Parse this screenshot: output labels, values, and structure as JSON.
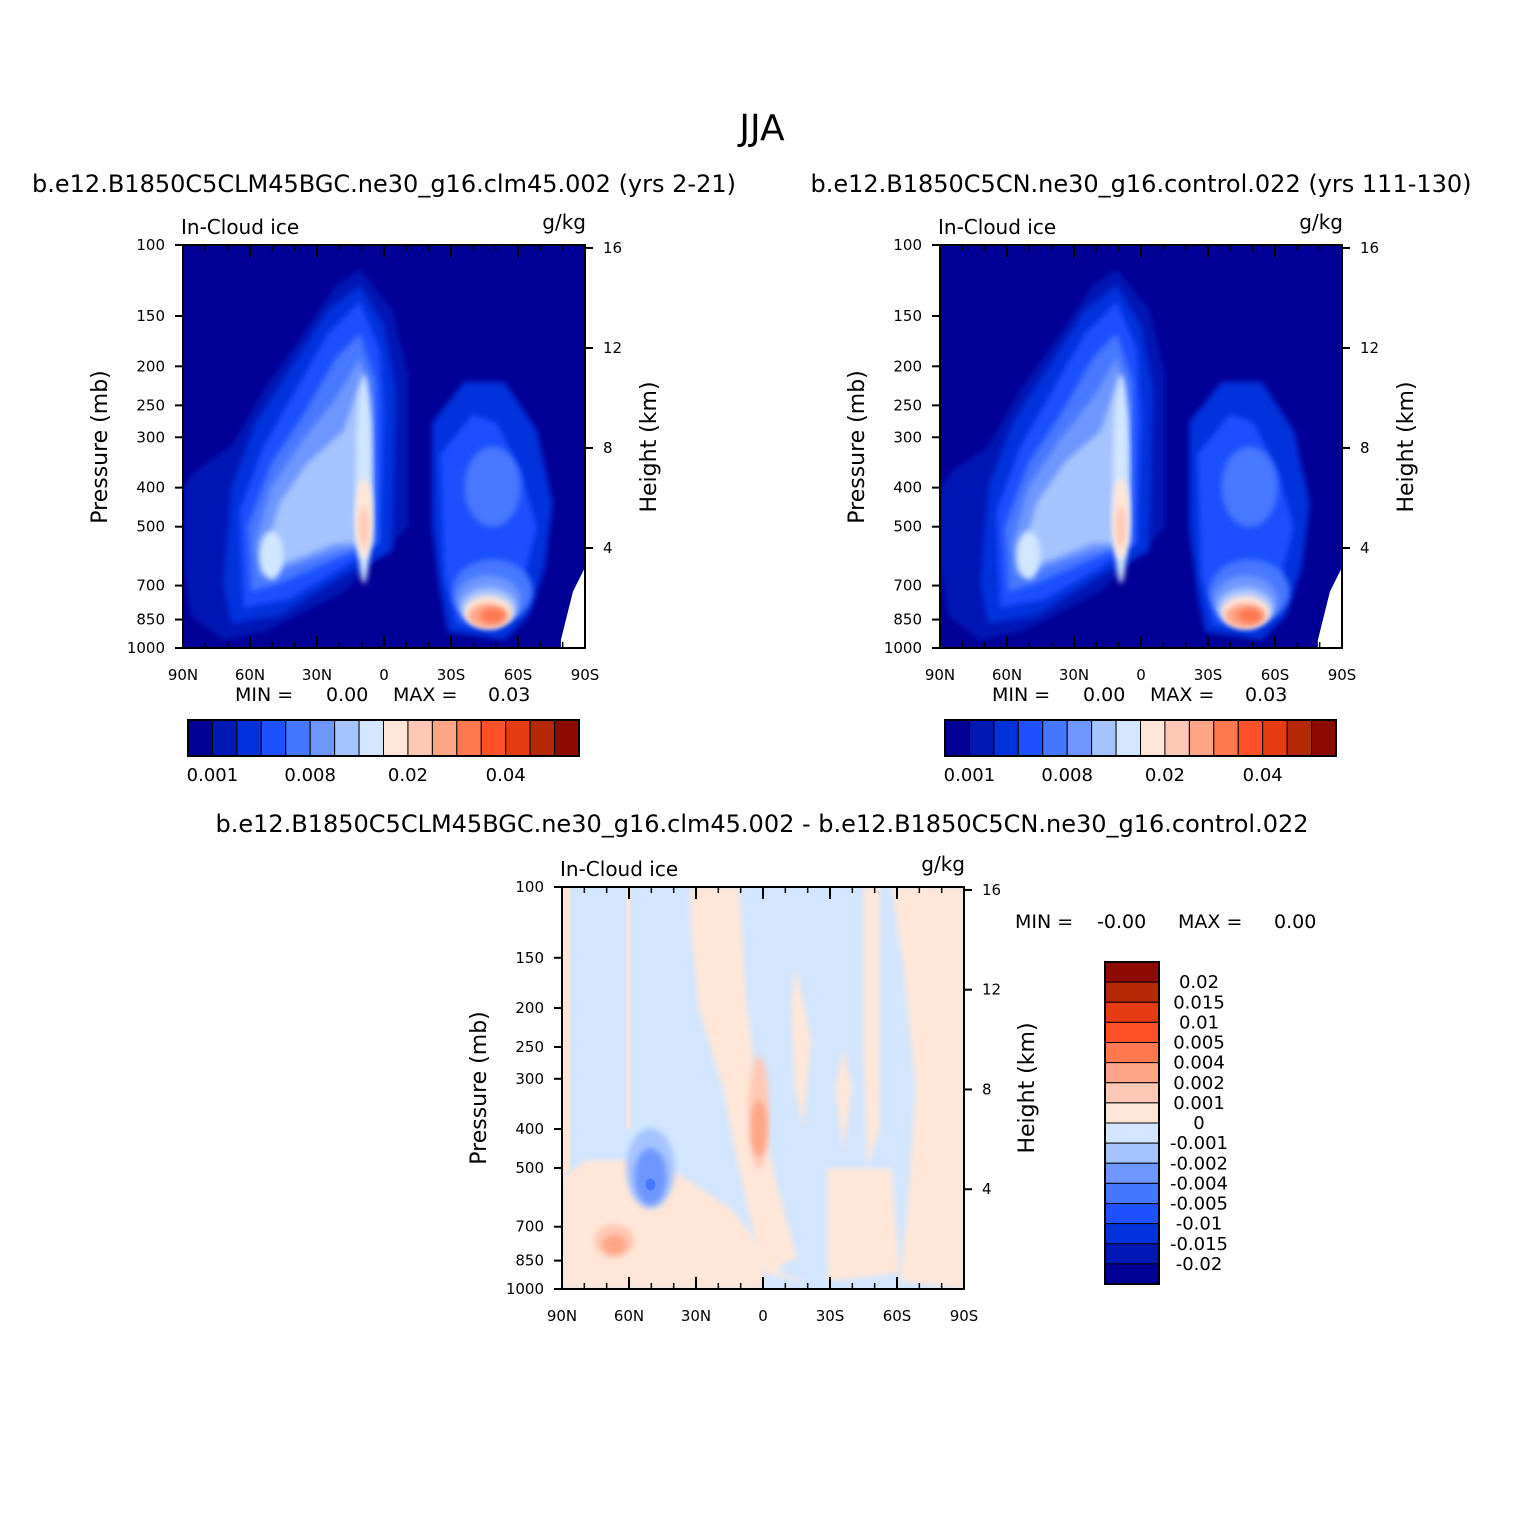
{
  "title": "JJA",
  "colors": {
    "seq": [
      "#000096",
      "#0019b4",
      "#0032dc",
      "#1e50ff",
      "#4678ff",
      "#6e96ff",
      "#a5c3ff",
      "#d2e6ff",
      "#ffe6d7",
      "#ffc8b4",
      "#ffa587",
      "#ff7850",
      "#ff5028",
      "#e63c14",
      "#b42805",
      "#8c0a00"
    ],
    "div": [
      "#000096",
      "#0019b4",
      "#0032dc",
      "#1e50ff",
      "#4678ff",
      "#6e96ff",
      "#a5c3ff",
      "#d2e6ff",
      "#ffe6d7",
      "#ffc8b4",
      "#ffa587",
      "#ff7850",
      "#ff5028",
      "#e63c14",
      "#b42805",
      "#8c0a00"
    ]
  },
  "chart_data": [
    {
      "type": "contour",
      "subtitle": "b.e12.B1850C5CLM45BGC.ne30_g16.clm45.002 (yrs 2-21)",
      "variable_label": "In-Cloud ice",
      "units_label": "g/kg",
      "ylabel": "Pressure (mb)",
      "ylabel_right": "Height (km)",
      "x_ticks": [
        "90N",
        "60N",
        "30N",
        "0",
        "30S",
        "60S",
        "90S"
      ],
      "y_ticks": [
        "100",
        "150",
        "200",
        "250",
        "300",
        "400",
        "500",
        "700",
        "850",
        "1000"
      ],
      "y_ticks_right": [
        "16",
        "12",
        "8",
        "4"
      ],
      "min_label": "MIN =",
      "min_value": "0.00",
      "max_label": "MAX =",
      "max_value": "0.03",
      "colorbar_labels": [
        "0.001",
        "0.008",
        "0.02",
        "0.04"
      ]
    },
    {
      "type": "contour",
      "subtitle": "b.e12.B1850C5CN.ne30_g16.control.022 (yrs 111-130)",
      "variable_label": "In-Cloud ice",
      "units_label": "g/kg",
      "ylabel": "Pressure (mb)",
      "ylabel_right": "Height (km)",
      "x_ticks": [
        "90N",
        "60N",
        "30N",
        "0",
        "30S",
        "60S",
        "90S"
      ],
      "y_ticks": [
        "100",
        "150",
        "200",
        "250",
        "300",
        "400",
        "500",
        "700",
        "850",
        "1000"
      ],
      "y_ticks_right": [
        "16",
        "12",
        "8",
        "4"
      ],
      "min_label": "MIN =",
      "min_value": "0.00",
      "max_label": "MAX =",
      "max_value": "0.03",
      "colorbar_labels": [
        "0.001",
        "0.008",
        "0.02",
        "0.04"
      ]
    },
    {
      "type": "contour",
      "subtitle": "b.e12.B1850C5CLM45BGC.ne30_g16.clm45.002 - b.e12.B1850C5CN.ne30_g16.control.022",
      "variable_label": "In-Cloud ice",
      "units_label": "g/kg",
      "ylabel": "Pressure (mb)",
      "ylabel_right": "Height (km)",
      "x_ticks": [
        "90N",
        "60N",
        "30N",
        "0",
        "30S",
        "60S",
        "90S"
      ],
      "y_ticks": [
        "100",
        "150",
        "200",
        "250",
        "300",
        "400",
        "500",
        "700",
        "850",
        "1000"
      ],
      "y_ticks_right": [
        "16",
        "12",
        "8",
        "4"
      ],
      "min_label": "MIN =",
      "min_value": "-0.00",
      "max_label": "MAX =",
      "max_value": "0.00",
      "colorbar_labels": [
        "0.02",
        "0.015",
        "0.01",
        "0.005",
        "0.004",
        "0.002",
        "0.001",
        "0",
        "-0.001",
        "-0.002",
        "-0.004",
        "-0.005",
        "-0.01",
        "-0.015",
        "-0.02"
      ]
    }
  ]
}
